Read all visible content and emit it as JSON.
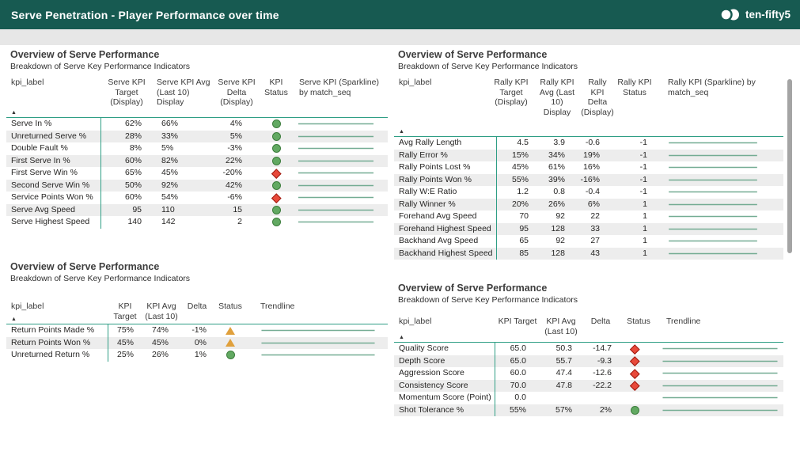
{
  "header": {
    "title": "Serve Penetration - Player Performance over time",
    "brand": "ten-fifty5"
  },
  "colors": {
    "header_bar": "#175a51",
    "accent_teal": "#2f9e85",
    "status_green": "#62a962",
    "status_red": "#e8493a",
    "status_amber": "#e0a03c",
    "sparkline": "#74ac93",
    "alt_row": "#ededed",
    "toolbar_strip": "#e7e7e7"
  },
  "sort_glyph": "▲",
  "tables": [
    {
      "title": "Overview of Serve Performance",
      "subtitle": "Breakdown of Serve Key Performance Indicators",
      "columns": [
        "kpi_label",
        "Serve KPI Target (Display)",
        "Serve KPI Avg (Last 10) Display",
        "Serve KPI Delta (Display)",
        "KPI Status",
        "Serve KPI (Sparkline) by match_seq"
      ],
      "rows": [
        {
          "label": "Serve In %",
          "target": "62%",
          "avg": "66%",
          "delta": "4%",
          "status": "green-circle"
        },
        {
          "label": "Unreturned Serve %",
          "target": "28%",
          "avg": "33%",
          "delta": "5%",
          "status": "green-circle"
        },
        {
          "label": "Double Fault %",
          "target": "8%",
          "avg": "5%",
          "delta": "-3%",
          "status": "green-circle"
        },
        {
          "label": "First Serve In %",
          "target": "60%",
          "avg": "82%",
          "delta": "22%",
          "status": "green-circle"
        },
        {
          "label": "First Serve Win %",
          "target": "65%",
          "avg": "45%",
          "delta": "-20%",
          "status": "red-diamond"
        },
        {
          "label": "Second Serve Win %",
          "target": "50%",
          "avg": "92%",
          "delta": "42%",
          "status": "green-circle"
        },
        {
          "label": "Service Points Won %",
          "target": "60%",
          "avg": "54%",
          "delta": "-6%",
          "status": "red-diamond"
        },
        {
          "label": "Serve Avg Speed",
          "target": "95",
          "avg": "110",
          "delta": "15",
          "status": "green-circle"
        },
        {
          "label": "Serve Highest Speed",
          "target": "140",
          "avg": "142",
          "delta": "2",
          "status": "green-circle"
        }
      ]
    },
    {
      "title": "Overview of Serve Performance",
      "subtitle": "Breakdown of Serve Key Performance Indicators",
      "columns": [
        "kpi_label",
        "Rally KPI Target (Display)",
        "Rally KPI Avg (Last 10) Display",
        "Rally KPI Delta (Display)",
        "Rally KPI Status",
        "Rally KPI (Sparkline) by match_seq"
      ],
      "rows": [
        {
          "label": "Avg Rally Length",
          "target": "4.5",
          "avg": "3.9",
          "delta": "-0.6",
          "status": "-1"
        },
        {
          "label": "Rally Error %",
          "target": "15%",
          "avg": "34%",
          "delta": "19%",
          "status": "-1"
        },
        {
          "label": "Rally Points Lost %",
          "target": "45%",
          "avg": "61%",
          "delta": "16%",
          "status": "-1"
        },
        {
          "label": "Rally Points Won %",
          "target": "55%",
          "avg": "39%",
          "delta": "-16%",
          "status": "-1"
        },
        {
          "label": "Rally W:E Ratio",
          "target": "1.2",
          "avg": "0.8",
          "delta": "-0.4",
          "status": "-1"
        },
        {
          "label": "Rally Winner %",
          "target": "20%",
          "avg": "26%",
          "delta": "6%",
          "status": "1"
        },
        {
          "label": "Forehand Avg Speed",
          "target": "70",
          "avg": "92",
          "delta": "22",
          "status": "1"
        },
        {
          "label": "Forehand Highest Speed",
          "target": "95",
          "avg": "128",
          "delta": "33",
          "status": "1"
        },
        {
          "label": "Backhand Avg Speed",
          "target": "65",
          "avg": "92",
          "delta": "27",
          "status": "1"
        },
        {
          "label": "Backhand Highest Speed",
          "target": "85",
          "avg": "128",
          "delta": "43",
          "status": "1"
        }
      ]
    },
    {
      "title": "Overview of Serve Performance",
      "subtitle": "Breakdown of Serve Key Performance Indicators",
      "columns": [
        "kpi_label",
        "KPI Target",
        "KPI Avg (Last 10)",
        "Delta",
        "Status",
        "Trendline"
      ],
      "rows": [
        {
          "label": "Return Points Made %",
          "target": "75%",
          "avg": "74%",
          "delta": "-1%",
          "status": "amber-triangle"
        },
        {
          "label": "Return Points Won %",
          "target": "45%",
          "avg": "45%",
          "delta": "0%",
          "status": "amber-triangle"
        },
        {
          "label": "Unreturned Return %",
          "target": "25%",
          "avg": "26%",
          "delta": "1%",
          "status": "green-circle"
        }
      ]
    },
    {
      "title": "Overview of Serve Performance",
      "subtitle": "Breakdown of Serve Key Performance Indicators",
      "columns": [
        "kpi_label",
        "KPI Target",
        "KPI Avg (Last 10)",
        "Delta",
        "Status",
        "Trendline"
      ],
      "rows": [
        {
          "label": "Quality Score",
          "target": "65.0",
          "avg": "50.3",
          "delta": "-14.7",
          "status": "red-diamond"
        },
        {
          "label": "Depth Score",
          "target": "65.0",
          "avg": "55.7",
          "delta": "-9.3",
          "status": "red-diamond"
        },
        {
          "label": "Aggression Score",
          "target": "60.0",
          "avg": "47.4",
          "delta": "-12.6",
          "status": "red-diamond"
        },
        {
          "label": "Consistency Score",
          "target": "70.0",
          "avg": "47.8",
          "delta": "-22.2",
          "status": "red-diamond"
        },
        {
          "label": "Momentum Score (Point)",
          "target": "0.0",
          "avg": "",
          "delta": "",
          "status": ""
        },
        {
          "label": "Shot Tolerance %",
          "target": "55%",
          "avg": "57%",
          "delta": "2%",
          "status": "green-circle"
        }
      ]
    }
  ]
}
